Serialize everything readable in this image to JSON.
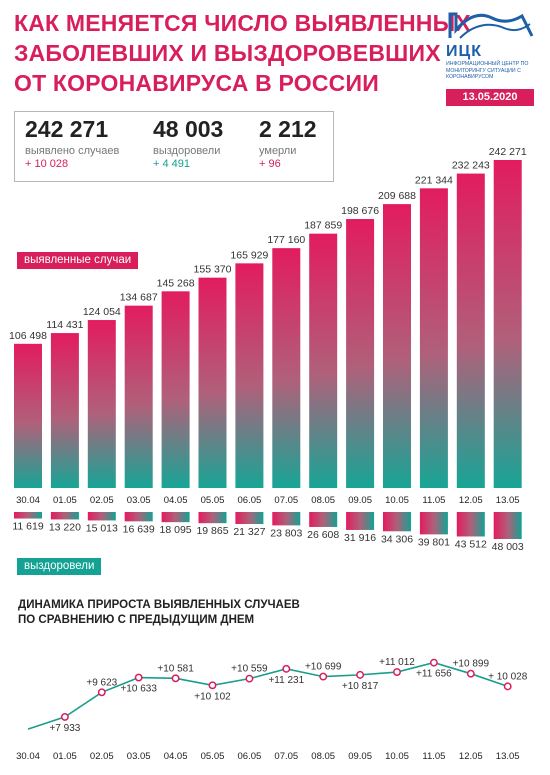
{
  "header": {
    "title_lines": [
      "КАК МЕНЯЕТСЯ ЧИСЛО ВЫЯВЛЕННЫХ",
      "ЗАБОЛЕВШИХ И ВЫЗДОРОВЕВШИХ",
      "ОТ КОРОНАВИРУСА В РОССИИ"
    ],
    "logo_name": "ИЦК",
    "logo_sub": "ИНФОРМАЦИОННЫЙ ЦЕНТР ПО МОНИТОРИНГУ СИТУАЦИИ С КОРОНАВИРУСОМ",
    "date": "13.05.2020"
  },
  "summary": [
    {
      "value": "242 271",
      "label": "выявлено случаев",
      "delta": "+ 10 028",
      "color": "pink"
    },
    {
      "value": "48 003",
      "label": "выздоровели",
      "delta": "+ 4 491",
      "color": "teal"
    },
    {
      "value": "2 212",
      "label": "умерли",
      "delta": "+ 96",
      "color": "pink"
    }
  ],
  "labels": {
    "detected": "выявленные случаи",
    "recovered": "выздоровели",
    "growth_title_1": "ДИНАМИКА ПРИРОСТА ВЫЯВЛЕННЫХ СЛУЧАЕВ",
    "growth_title_2": "ПО СРАВНЕНИЮ С ПРЕДЫДУЩИМ ДНЕМ"
  },
  "colors": {
    "accent": "#d81e5b",
    "teal": "#13a293",
    "text": "#222222"
  },
  "chart_data": [
    {
      "type": "bar",
      "categories": [
        "30.04",
        "01.05",
        "02.05",
        "03.05",
        "04.05",
        "05.05",
        "06.05",
        "07.05",
        "08.05",
        "09.05",
        "10.05",
        "11.05",
        "12.05",
        "13.05"
      ],
      "series": [
        {
          "name": "выявленные случаи",
          "values": [
            106498,
            114431,
            124054,
            134687,
            145268,
            155370,
            165929,
            177160,
            187859,
            198676,
            209688,
            221344,
            232243,
            242271
          ],
          "labels": [
            "106 498",
            "114 431",
            "124 054",
            "134 687",
            "145 268",
            "155 370",
            "165 929",
            "177 160",
            "187 859",
            "198 676",
            "209 688",
            "221 344",
            "232 243",
            "242 271"
          ]
        },
        {
          "name": "выздоровели",
          "values": [
            11619,
            13220,
            15013,
            16639,
            18095,
            19865,
            21327,
            23803,
            26608,
            31916,
            34306,
            39801,
            43512,
            48003
          ],
          "labels": [
            "11 619",
            "13 220",
            "15 013",
            "16 639",
            "18 095",
            "19 865",
            "21 327",
            "23 803",
            "26 608",
            "31 916",
            "34 306",
            "39 801",
            "43 512",
            "48 003"
          ]
        }
      ]
    },
    {
      "type": "line",
      "title": "ДИНАМИКА ПРИРОСТА ВЫЯВЛЕННЫХ СЛУЧАЕВ ПО СРАВНЕНИЮ С ПРЕДЫДУЩИМ ДНЕМ",
      "x": [
        "30.04",
        "01.05",
        "02.05",
        "03.05",
        "04.05",
        "05.05",
        "06.05",
        "07.05",
        "08.05",
        "09.05",
        "10.05",
        "11.05",
        "12.05",
        "13.05"
      ],
      "values": [
        7099,
        7933,
        9623,
        10633,
        10581,
        10102,
        10559,
        11231,
        10699,
        10817,
        11012,
        11656,
        10899,
        10028
      ],
      "labels": [
        "",
        "+7 933",
        "+9 623",
        "+10 633",
        "+10 581",
        "+10 102",
        "+10 559",
        "+11 231",
        "+10 699",
        "+10 817",
        "+11 012",
        "+11 656",
        "+10 899",
        "+ 10 028"
      ],
      "label_pos": [
        "",
        "below",
        "above",
        "below",
        "above",
        "below",
        "above",
        "below",
        "above",
        "below",
        "above",
        "below",
        "above",
        "above"
      ]
    }
  ]
}
